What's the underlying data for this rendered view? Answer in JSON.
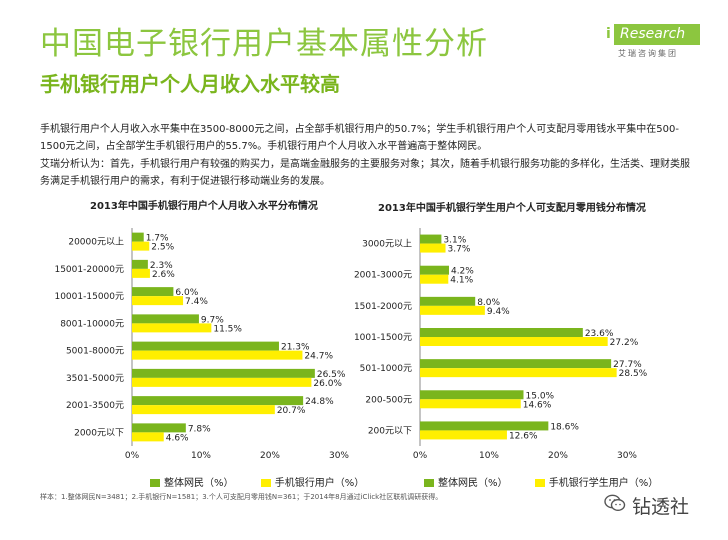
{
  "page": {
    "title": "中国电子银行用户基本属性分析",
    "subtitle": "手机银行用户个人月收入水平较高",
    "logo_word": "Research",
    "logo_i": "i",
    "logo_sub": "艾瑞咨询集团",
    "para1": "手机银行用户个人月收入水平集中在3500-8000元之间，占全部手机银行用户的50.7%；学生手机银行用户个人可支配月零用钱水平集中在500-1500元之间，占全部学生手机银行用户的55.7%。手机银行用户个人月收入水平普遍高于整体网民。",
    "para2": "艾瑞分析认为：首先，手机银行用户有较强的购买力，是高端金融服务的主要服务对象；其次，随着手机银行服务功能的多样化，生活类、理财类服务满足手机银行用户的需求，有利于促进银行移动端业务的发展。",
    "footnote": "样本：1.整体网民N=3481；2.手机银行N=1581；3.个人可支配月零用钱N=361；于2014年8月通过iClick社区联机调研获得。",
    "wechat_text": "钻透社"
  },
  "colors": {
    "green": "#7ab51d",
    "yellow": "#ffef00",
    "title_green": "#8cc63f"
  },
  "chart_data": [
    {
      "type": "bar",
      "orientation": "horizontal",
      "title": "2013年中国手机银行用户个人月收入水平分布情况",
      "categories": [
        "20000元以上",
        "15001-20000元",
        "10001-15000元",
        "8001-10000元",
        "5001-8000元",
        "3501-5000元",
        "2001-3500元",
        "2000元以下"
      ],
      "series": [
        {
          "name": "整体网民（%）",
          "values": [
            1.7,
            2.3,
            6.0,
            9.7,
            21.3,
            26.5,
            24.8,
            7.8
          ],
          "labels": [
            "1.7%",
            "2.3%",
            "6.0%",
            "9.7%",
            "21.3%",
            "26.5%",
            "24.8%",
            "7.8%"
          ]
        },
        {
          "name": "手机银行用户（%）",
          "values": [
            2.5,
            2.6,
            7.4,
            11.5,
            24.7,
            26.0,
            20.7,
            4.6
          ],
          "labels": [
            "2.5%",
            "2.6%",
            "7.4%",
            "11.5%",
            "24.7%",
            "26.0%",
            "20.7%",
            "4.6%"
          ]
        }
      ],
      "xlim": [
        0,
        30
      ],
      "ticks": [
        "0%",
        "10%",
        "20%",
        "30%"
      ]
    },
    {
      "type": "bar",
      "orientation": "horizontal",
      "title": "2013年中国手机银行学生用户个人可支配月零用钱分布情况",
      "categories": [
        "3000元以上",
        "2001-3000元",
        "1501-2000元",
        "1001-1500元",
        "501-1000元",
        "200-500元",
        "200元以下"
      ],
      "series": [
        {
          "name": "整体网民（%）",
          "values": [
            3.1,
            4.2,
            8.0,
            23.6,
            27.7,
            15.0,
            18.6
          ],
          "labels": [
            "3.1%",
            "4.2%",
            "8.0%",
            "23.6%",
            "27.7%",
            "15.0%",
            "18.6%"
          ]
        },
        {
          "name": "手机银行学生用户（%）",
          "values": [
            3.7,
            4.1,
            9.4,
            27.2,
            28.5,
            14.6,
            12.6
          ],
          "labels": [
            "3.7%",
            "4.1%",
            "9.4%",
            "27.2%",
            "28.5%",
            "14.6%",
            "12.6%"
          ]
        }
      ],
      "xlim": [
        0,
        30
      ],
      "ticks": [
        "0%",
        "10%",
        "20%",
        "30%"
      ]
    }
  ]
}
